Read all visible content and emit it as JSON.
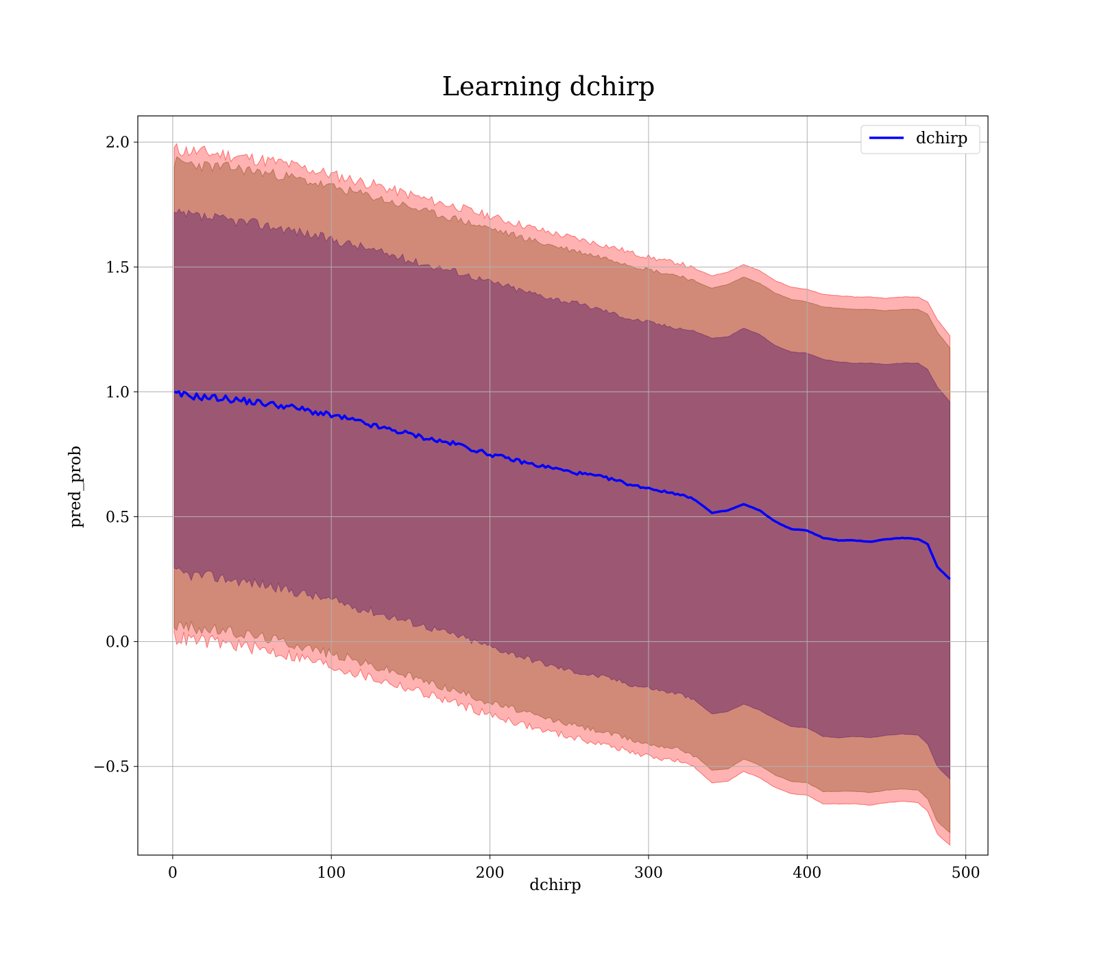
{
  "chart_data": {
    "type": "line",
    "title": "Learning dchirp",
    "xlabel": "dchirp",
    "ylabel": "pred_prob",
    "xlim": [
      -22,
      514
    ],
    "ylim": [
      -0.855,
      2.105
    ],
    "x_ticks": [
      0,
      100,
      200,
      300,
      400,
      500
    ],
    "x_tick_labels": [
      "0",
      "100",
      "200",
      "300",
      "400",
      "500"
    ],
    "y_ticks": [
      -0.5,
      0.0,
      0.5,
      1.0,
      1.5,
      2.0
    ],
    "y_tick_labels": [
      "−0.5",
      "0.0",
      "0.5",
      "1.0",
      "1.5",
      "2.0"
    ],
    "grid": true,
    "legend": {
      "position": "top-right",
      "entries": [
        "dchirp"
      ]
    },
    "series": [
      {
        "name": "dchirp",
        "color": "#0000ff",
        "x": [
          1,
          10,
          20,
          30,
          40,
          50,
          60,
          70,
          80,
          90,
          100,
          110,
          120,
          130,
          140,
          150,
          160,
          170,
          180,
          190,
          200,
          210,
          220,
          230,
          240,
          250,
          260,
          270,
          280,
          290,
          300,
          310,
          320,
          330,
          340,
          350,
          360,
          370,
          380,
          390,
          400,
          410,
          420,
          430,
          440,
          450,
          460,
          470,
          476,
          482,
          490
        ],
        "mean": [
          0.99,
          0.985,
          0.978,
          0.975,
          0.968,
          0.96,
          0.952,
          0.944,
          0.932,
          0.918,
          0.905,
          0.892,
          0.875,
          0.858,
          0.845,
          0.83,
          0.815,
          0.8,
          0.79,
          0.768,
          0.75,
          0.735,
          0.72,
          0.705,
          0.695,
          0.68,
          0.67,
          0.66,
          0.645,
          0.625,
          0.615,
          0.6,
          0.59,
          0.565,
          0.515,
          0.525,
          0.55,
          0.525,
          0.48,
          0.45,
          0.445,
          0.415,
          0.405,
          0.405,
          0.4,
          0.41,
          0.415,
          0.41,
          0.39,
          0.3,
          0.25
        ],
        "band_1std": {
          "lower": [
            0.275,
            0.268,
            0.262,
            0.255,
            0.245,
            0.235,
            0.225,
            0.21,
            0.195,
            0.18,
            0.165,
            0.148,
            0.13,
            0.112,
            0.095,
            0.078,
            0.06,
            0.04,
            0.022,
            0.0,
            -0.02,
            -0.04,
            -0.06,
            -0.08,
            -0.1,
            -0.115,
            -0.13,
            -0.14,
            -0.155,
            -0.175,
            -0.185,
            -0.2,
            -0.21,
            -0.24,
            -0.29,
            -0.28,
            -0.25,
            -0.275,
            -0.31,
            -0.34,
            -0.345,
            -0.38,
            -0.385,
            -0.38,
            -0.385,
            -0.375,
            -0.37,
            -0.375,
            -0.41,
            -0.5,
            -0.55
          ],
          "upper": [
            1.71,
            1.705,
            1.698,
            1.69,
            1.685,
            1.675,
            1.665,
            1.655,
            1.64,
            1.625,
            1.61,
            1.595,
            1.58,
            1.56,
            1.545,
            1.525,
            1.51,
            1.495,
            1.48,
            1.46,
            1.44,
            1.425,
            1.405,
            1.39,
            1.375,
            1.36,
            1.345,
            1.33,
            1.31,
            1.29,
            1.28,
            1.265,
            1.255,
            1.24,
            1.215,
            1.22,
            1.255,
            1.23,
            1.185,
            1.16,
            1.155,
            1.13,
            1.12,
            1.115,
            1.115,
            1.11,
            1.115,
            1.115,
            1.09,
            1.02,
            0.96
          ]
        },
        "band_2std": {
          "lower": [
            0.065,
            0.058,
            0.05,
            0.045,
            0.035,
            0.025,
            0.015,
            0.0,
            -0.015,
            -0.03,
            -0.05,
            -0.065,
            -0.085,
            -0.105,
            -0.12,
            -0.14,
            -0.16,
            -0.18,
            -0.2,
            -0.22,
            -0.245,
            -0.26,
            -0.28,
            -0.3,
            -0.315,
            -0.33,
            -0.345,
            -0.36,
            -0.375,
            -0.395,
            -0.41,
            -0.42,
            -0.43,
            -0.46,
            -0.515,
            -0.51,
            -0.47,
            -0.495,
            -0.535,
            -0.56,
            -0.565,
            -0.6,
            -0.6,
            -0.6,
            -0.605,
            -0.595,
            -0.59,
            -0.595,
            -0.63,
            -0.72,
            -0.765
          ],
          "upper": [
            1.92,
            1.915,
            1.905,
            1.9,
            1.895,
            1.885,
            1.875,
            1.865,
            1.85,
            1.835,
            1.82,
            1.805,
            1.79,
            1.775,
            1.755,
            1.74,
            1.72,
            1.705,
            1.69,
            1.67,
            1.655,
            1.635,
            1.62,
            1.6,
            1.585,
            1.57,
            1.555,
            1.54,
            1.525,
            1.505,
            1.49,
            1.475,
            1.465,
            1.44,
            1.415,
            1.43,
            1.46,
            1.435,
            1.395,
            1.37,
            1.36,
            1.34,
            1.335,
            1.33,
            1.33,
            1.325,
            1.33,
            1.33,
            1.31,
            1.24,
            1.175
          ]
        },
        "band_3std": {
          "lower": [
            0.015,
            0.008,
            0.0,
            -0.005,
            -0.015,
            -0.025,
            -0.035,
            -0.05,
            -0.065,
            -0.08,
            -0.1,
            -0.115,
            -0.135,
            -0.155,
            -0.17,
            -0.19,
            -0.21,
            -0.23,
            -0.25,
            -0.27,
            -0.295,
            -0.31,
            -0.33,
            -0.35,
            -0.365,
            -0.38,
            -0.395,
            -0.41,
            -0.425,
            -0.445,
            -0.46,
            -0.47,
            -0.48,
            -0.51,
            -0.565,
            -0.56,
            -0.52,
            -0.545,
            -0.585,
            -0.61,
            -0.615,
            -0.65,
            -0.65,
            -0.65,
            -0.655,
            -0.645,
            -0.64,
            -0.645,
            -0.68,
            -0.77,
            -0.815
          ],
          "upper": [
            1.97,
            1.965,
            1.958,
            1.952,
            1.945,
            1.935,
            1.925,
            1.915,
            1.9,
            1.885,
            1.87,
            1.855,
            1.84,
            1.825,
            1.805,
            1.79,
            1.77,
            1.755,
            1.74,
            1.72,
            1.705,
            1.685,
            1.67,
            1.65,
            1.635,
            1.62,
            1.605,
            1.59,
            1.575,
            1.555,
            1.54,
            1.525,
            1.515,
            1.49,
            1.465,
            1.48,
            1.51,
            1.485,
            1.445,
            1.42,
            1.41,
            1.39,
            1.385,
            1.38,
            1.38,
            1.375,
            1.38,
            1.38,
            1.36,
            1.29,
            1.225
          ]
        }
      }
    ],
    "band_colors": {
      "band_3std": "#ff0000",
      "band_2std": "#8a4a1a",
      "band_1std": "#5a1a6a"
    }
  }
}
